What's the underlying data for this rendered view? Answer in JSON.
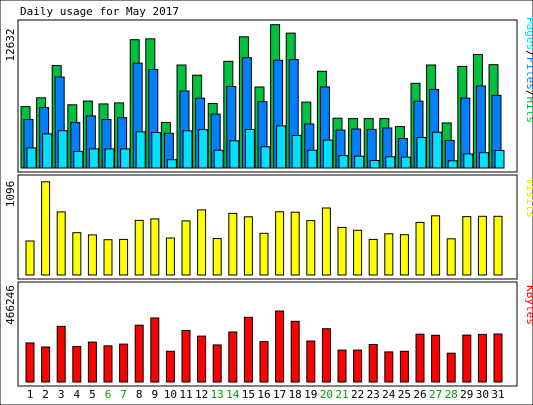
{
  "title": "Daily usage for May 2017",
  "panels": {
    "hits": {
      "ymax_label": "12632",
      "side_label_parts": [
        "Pages",
        "/",
        "Files",
        "/",
        "Hits"
      ]
    },
    "visits": {
      "ymax_label": "1096",
      "side_label": "Visits"
    },
    "kbytes": {
      "ymax_label": "466246",
      "side_label": "KBytes"
    }
  },
  "colors": {
    "hits": "#00c040",
    "files": "#0080ff",
    "pages": "#00e0ff",
    "visits": "#ffff00",
    "kbytes": "#ff0000",
    "weekend_label": "#00a000",
    "weekday_label": "#000000",
    "frame": "#000000",
    "background": "#ffffff"
  },
  "chart_data": {
    "type": "bar",
    "title": "Daily usage for May 2017",
    "categories": [
      "1",
      "2",
      "3",
      "4",
      "5",
      "6",
      "7",
      "8",
      "9",
      "10",
      "11",
      "12",
      "13",
      "14",
      "15",
      "16",
      "17",
      "18",
      "19",
      "20",
      "21",
      "22",
      "23",
      "24",
      "25",
      "26",
      "27",
      "28",
      "29",
      "30",
      "31"
    ],
    "weekend_days": [
      "6",
      "7",
      "13",
      "14",
      "20",
      "21",
      "27",
      "28"
    ],
    "series": [
      {
        "name": "Hits",
        "panel": "hits",
        "values": [
          5310,
          6070,
          8860,
          5470,
          5800,
          5550,
          5630,
          11100,
          11180,
          3940,
          8910,
          8030,
          5580,
          9230,
          11350,
          7010,
          12400,
          11670,
          5700,
          8370,
          4310,
          4270,
          4270,
          4270,
          3580,
          7330,
          8910,
          3900,
          8790,
          9820,
          8940
        ]
      },
      {
        "name": "Files",
        "panel": "files",
        "values": [
          4200,
          5230,
          7870,
          3940,
          4510,
          4200,
          4350,
          9070,
          8520,
          3000,
          6660,
          6040,
          4660,
          7050,
          9540,
          5740,
          9320,
          9380,
          3810,
          7020,
          3280,
          3370,
          3340,
          3460,
          2550,
          5780,
          6800,
          2390,
          6050,
          7100,
          6280
        ]
      },
      {
        "name": "Pages",
        "panel": "pages",
        "values": [
          1740,
          2950,
          3230,
          1440,
          1650,
          1650,
          1650,
          3130,
          3070,
          720,
          3220,
          3320,
          1530,
          2350,
          3330,
          1840,
          3640,
          2810,
          1530,
          2410,
          1070,
          1020,
          650,
          970,
          940,
          2640,
          3090,
          620,
          1220,
          1320,
          1510
        ]
      },
      {
        "name": "Visits",
        "panel": "visits",
        "values": [
          388,
          1064,
          720,
          483,
          458,
          403,
          406,
          623,
          640,
          422,
          618,
          743,
          416,
          703,
          664,
          476,
          722,
          717,
          621,
          765,
          544,
          510,
          406,
          470,
          460,
          600,
          676,
          413,
          667,
          670,
          670
        ]
      },
      {
        "name": "KBytes",
        "panel": "kbytes",
        "values": [
          190000,
          170000,
          270000,
          172000,
          194000,
          176000,
          184000,
          276000,
          311000,
          149000,
          250000,
          223000,
          180000,
          243000,
          314000,
          196000,
          345000,
          295000,
          199000,
          259000,
          155000,
          155000,
          182000,
          146000,
          149000,
          232000,
          227000,
          140000,
          228000,
          231000,
          233000
        ]
      }
    ],
    "panel_ymax": {
      "hits": 12632,
      "visits": 1096,
      "kbytes": 466246
    }
  }
}
